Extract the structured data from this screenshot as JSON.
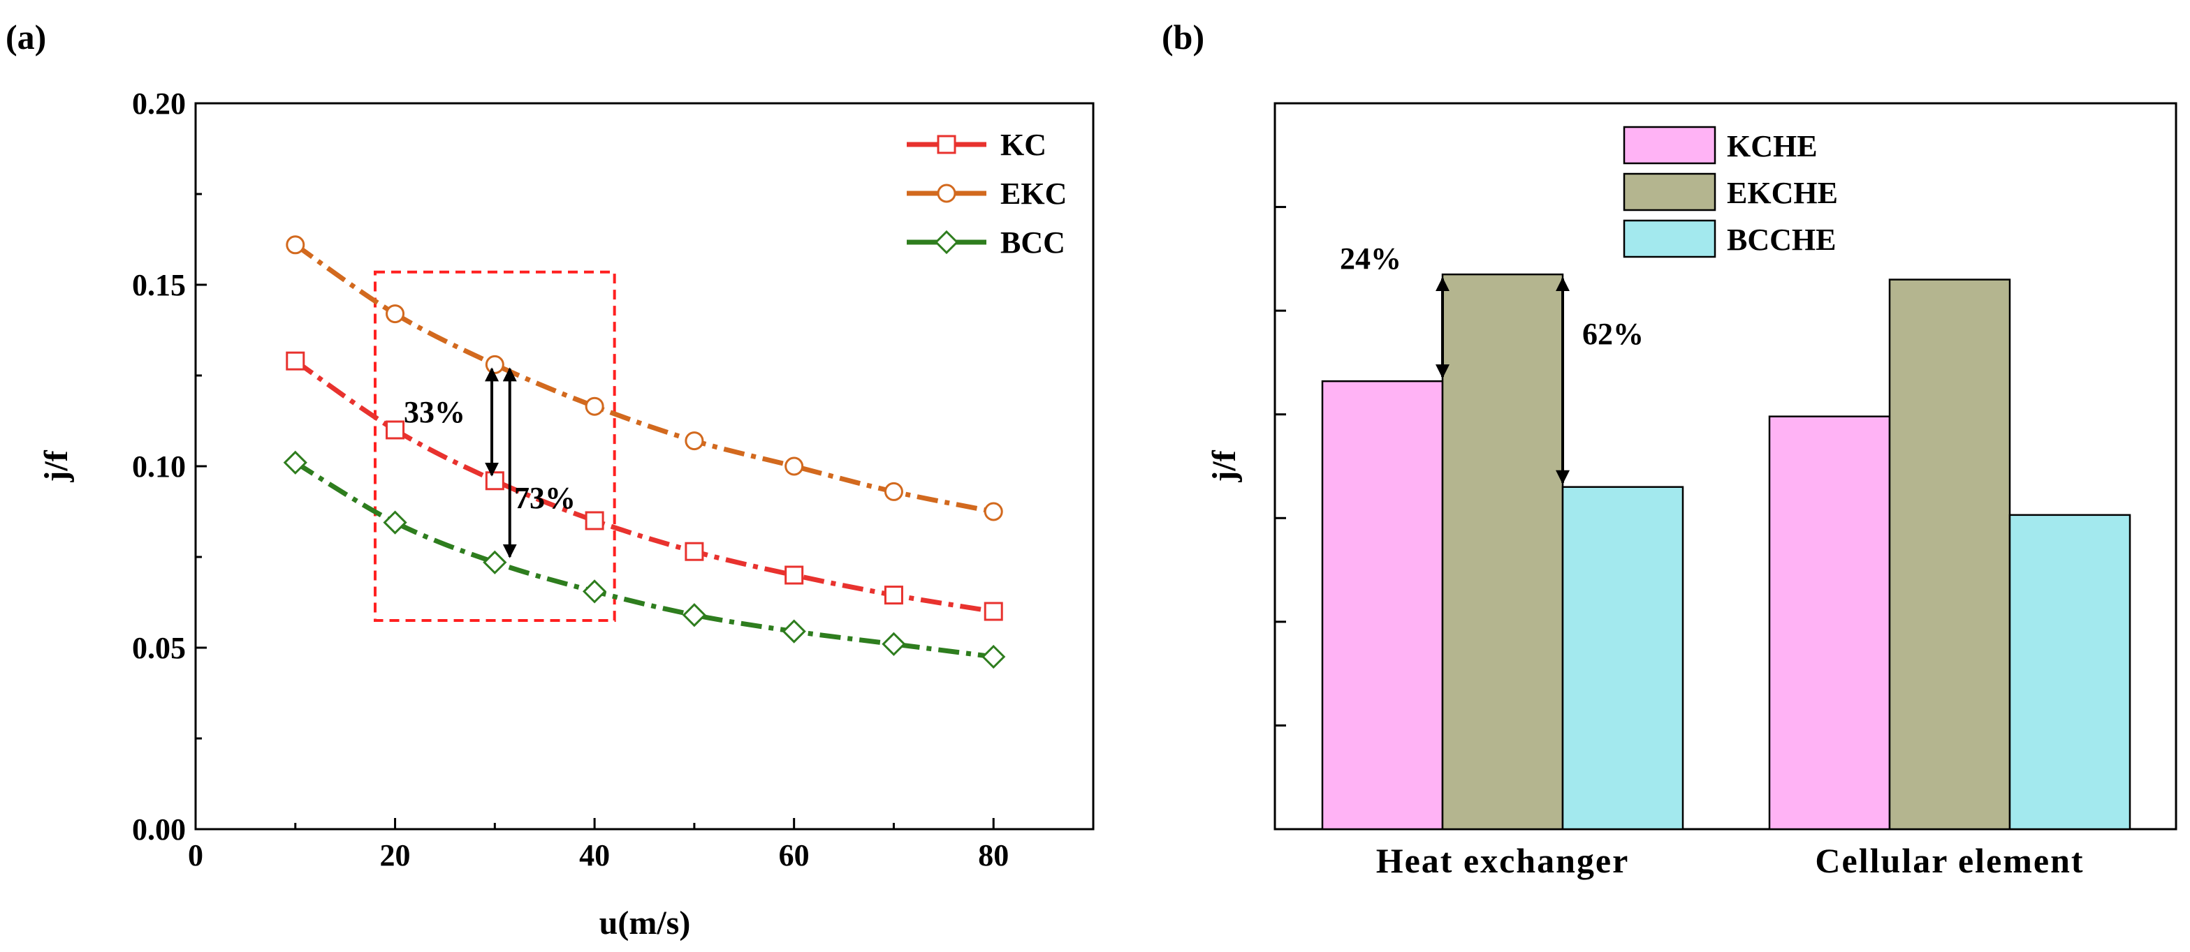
{
  "chart_data": [
    {
      "panel": "(a)",
      "type": "line",
      "xlabel": "u(m/s)",
      "ylabel": "j/f",
      "xlim": [
        0,
        90
      ],
      "ylim": [
        0.0,
        0.2
      ],
      "xticks": [
        "0",
        "20",
        "40",
        "60",
        "80"
      ],
      "yticks": [
        "0.00",
        "0.05",
        "0.10",
        "0.15",
        "0.20"
      ],
      "x": [
        10,
        20,
        30,
        40,
        50,
        60,
        70,
        80
      ],
      "series": [
        {
          "name": "KC",
          "color": "#e8322e",
          "marker": "square",
          "values": [
            0.129,
            0.11,
            0.096,
            0.085,
            0.0765,
            0.07,
            0.0645,
            0.06
          ]
        },
        {
          "name": "EKC",
          "color": "#d2691e",
          "marker": "circle",
          "values": [
            0.161,
            0.142,
            0.128,
            0.1165,
            0.107,
            0.1,
            0.093,
            0.0875
          ]
        },
        {
          "name": "BCC",
          "color": "#2e7d1e",
          "marker": "diamond",
          "values": [
            0.101,
            0.0845,
            0.0735,
            0.0655,
            0.059,
            0.0545,
            0.051,
            0.0475
          ]
        }
      ],
      "highlight_region": {
        "x_range": [
          18,
          42
        ],
        "y_range": [
          0.0575,
          0.1535
        ]
      },
      "annotations": [
        {
          "text": "33%",
          "from": [
            29.7,
            0.128
          ],
          "to": [
            29.7,
            0.096
          ]
        },
        {
          "text": "73%",
          "from": [
            31.5,
            0.128
          ],
          "to": [
            31.5,
            0.0735
          ]
        }
      ]
    },
    {
      "panel": "(b)",
      "type": "bar",
      "ylabel": "j/f",
      "ylim": [
        0,
        7
      ],
      "yticks_count": 7,
      "categories": [
        "Heat exchanger",
        "Cellular element"
      ],
      "series": [
        {
          "name": "KCHE",
          "color": "#ffb3f5",
          "values": [
            4.32,
            3.98
          ]
        },
        {
          "name": "EKCHE",
          "color": "#b4b58f",
          "values": [
            5.35,
            5.3
          ]
        },
        {
          "name": "BCCHE",
          "color": "#a3e9ee",
          "values": [
            3.3,
            3.03
          ]
        }
      ],
      "annotations": [
        {
          "text": "24%",
          "from_series": "EKCHE",
          "to_series": "KCHE",
          "category": "Heat exchanger"
        },
        {
          "text": "62%",
          "from_series": "EKCHE",
          "to_series": "BCCHE",
          "category": "Heat exchanger"
        }
      ]
    }
  ]
}
